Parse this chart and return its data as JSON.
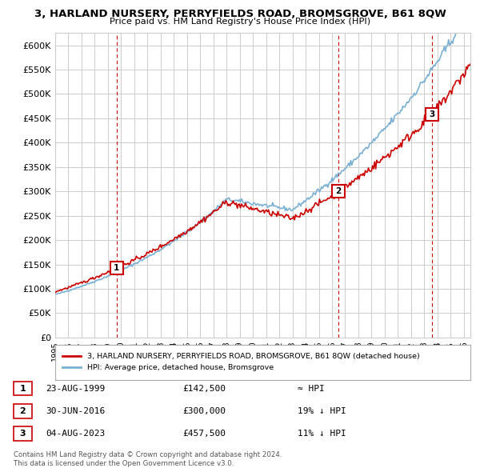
{
  "title": "3, HARLAND NURSERY, PERRYFIELDS ROAD, BROMSGROVE, B61 8QW",
  "subtitle": "Price paid vs. HM Land Registry's House Price Index (HPI)",
  "ylim": [
    0,
    625000
  ],
  "yticks": [
    0,
    50000,
    100000,
    150000,
    200000,
    250000,
    300000,
    350000,
    400000,
    450000,
    500000,
    550000,
    600000
  ],
  "ytick_labels": [
    "£0",
    "£50K",
    "£100K",
    "£150K",
    "£200K",
    "£250K",
    "£300K",
    "£350K",
    "£400K",
    "£450K",
    "£500K",
    "£550K",
    "£600K"
  ],
  "xlim_start": 1995.0,
  "xlim_end": 2026.5,
  "sale1_x": 1999.646,
  "sale1_y": 142500,
  "sale1_label": "1",
  "sale2_x": 2016.496,
  "sale2_y": 300000,
  "sale2_label": "2",
  "sale3_x": 2023.587,
  "sale3_y": 457500,
  "sale3_label": "3",
  "red_line_color": "#cc0000",
  "blue_line_color": "#7ab0d4",
  "dashed_vline_color": "#cc0000",
  "background_color": "#ffffff",
  "grid_color": "#cccccc",
  "legend_line1": "3, HARLAND NURSERY, PERRYFIELDS ROAD, BROMSGROVE, B61 8QW (detached house)",
  "legend_line2": "HPI: Average price, detached house, Bromsgrove",
  "table_row1": [
    "1",
    "23-AUG-1999",
    "£142,500",
    "≈ HPI"
  ],
  "table_row2": [
    "2",
    "30-JUN-2016",
    "£300,000",
    "19% ↓ HPI"
  ],
  "table_row3": [
    "3",
    "04-AUG-2023",
    "£457,500",
    "11% ↓ HPI"
  ],
  "footnote1": "Contains HM Land Registry data © Crown copyright and database right 2024.",
  "footnote2": "This data is licensed under the Open Government Licence v3.0."
}
